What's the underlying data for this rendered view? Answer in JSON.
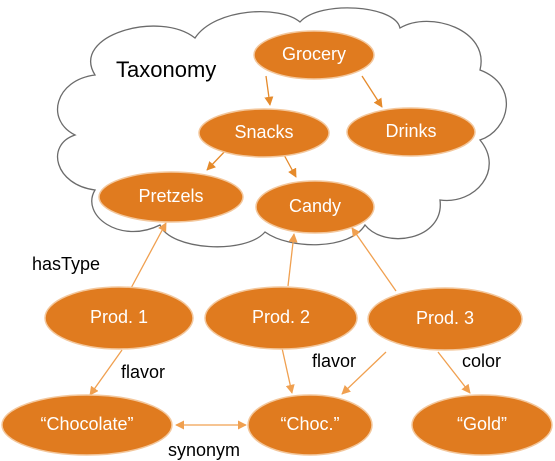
{
  "title": "Taxonomy",
  "accent_color": "#E07B1F",
  "edge_color": "#F0A050",
  "nodes": {
    "grocery": "Grocery",
    "snacks": "Snacks",
    "drinks": "Drinks",
    "pretzels": "Pretzels",
    "candy": "Candy",
    "prod1": "Prod. 1",
    "prod2": "Prod. 2",
    "prod3": "Prod. 3",
    "chocolate": "“Chocolate”",
    "choc": "“Choc.”",
    "gold": "“Gold”"
  },
  "edge_labels": {
    "hasType": "hasType",
    "flavor1": "flavor",
    "flavor2": "flavor",
    "color": "color",
    "synonym": "synonym"
  }
}
